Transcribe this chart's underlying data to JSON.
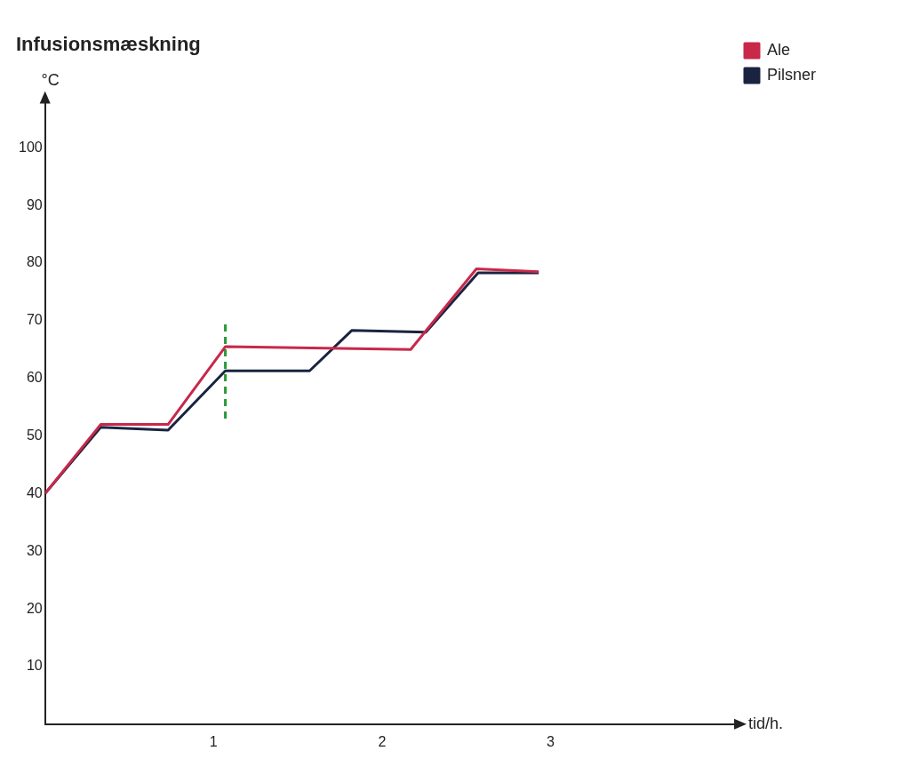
{
  "chart_data": {
    "type": "line",
    "title": "Infusionsmæskning",
    "xlabel": "tid/h.",
    "ylabel": "°C",
    "xlim": [
      0,
      4.1
    ],
    "xticks": [
      1,
      2,
      3
    ],
    "ylim": [
      0,
      108
    ],
    "yticks": [
      10,
      20,
      30,
      40,
      50,
      60,
      70,
      80,
      90,
      100
    ],
    "grid": false,
    "legend": "right",
    "marker": "none",
    "line_style": "solid",
    "series": [
      {
        "name": "Ale",
        "color": "#c8284a",
        "x": [
          0,
          0.33,
          0.73,
          1.07,
          2.17,
          2.56,
          2.93
        ],
        "values": [
          40,
          52,
          52,
          65.5,
          65,
          79,
          78.5
        ]
      },
      {
        "name": "Pilsner",
        "color": "#1a2440",
        "x": [
          0,
          0.33,
          0.73,
          1.07,
          1.57,
          1.82,
          2.26,
          2.57,
          2.93
        ],
        "values": [
          40,
          51.5,
          51,
          61.3,
          61.3,
          68.3,
          68,
          78.3,
          78.3
        ]
      },
      {
        "color": "#2a9a3a",
        "line_style": "dashed",
        "x": [
          1.07,
          1.07
        ],
        "values": [
          53,
          70
        ]
      }
    ]
  }
}
